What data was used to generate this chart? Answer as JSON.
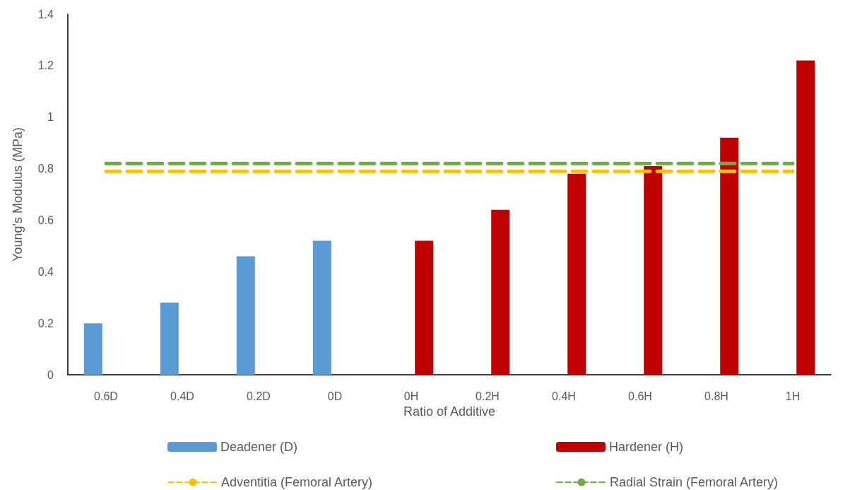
{
  "chart_data": {
    "type": "bar",
    "xlabel": "Ratio of Additive",
    "ylabel": "Young's Modulus (MPa)",
    "categories": [
      "0.6D",
      "0.4D",
      "0.2D",
      "0D",
      "0H",
      "0.2H",
      "0.4H",
      "0.6H",
      "0.8H",
      "1H"
    ],
    "series": [
      {
        "name": "Deadener (D)",
        "color": "#5b9bd5",
        "values": [
          0.2,
          0.28,
          0.46,
          0.52,
          null,
          null,
          null,
          null,
          null,
          null
        ]
      },
      {
        "name": "Hardener (H)",
        "color": "#c00000",
        "values": [
          null,
          null,
          null,
          null,
          0.52,
          0.64,
          0.78,
          0.81,
          0.92,
          1.22
        ]
      },
      {
        "name": "Adventitia (Femoral Artery)",
        "type": "line",
        "line_style": "dashed",
        "marker": "none",
        "color": "#ffc000",
        "values": [
          0.79,
          0.79,
          0.79,
          0.79,
          0.79,
          0.79,
          0.79,
          0.79,
          0.79,
          0.79
        ]
      },
      {
        "name": "Radial Strain (Femoral Artery)",
        "type": "line",
        "line_style": "dashed",
        "marker": "none",
        "color": "#70ad47",
        "values": [
          0.82,
          0.82,
          0.82,
          0.82,
          0.82,
          0.82,
          0.82,
          0.82,
          0.82,
          0.82
        ]
      }
    ],
    "ylim": [
      0,
      1.4
    ],
    "yticks": [
      0,
      0.2,
      0.4,
      0.6,
      0.8,
      1,
      1.2,
      1.4
    ],
    "grid": false,
    "legend": "bottom"
  }
}
